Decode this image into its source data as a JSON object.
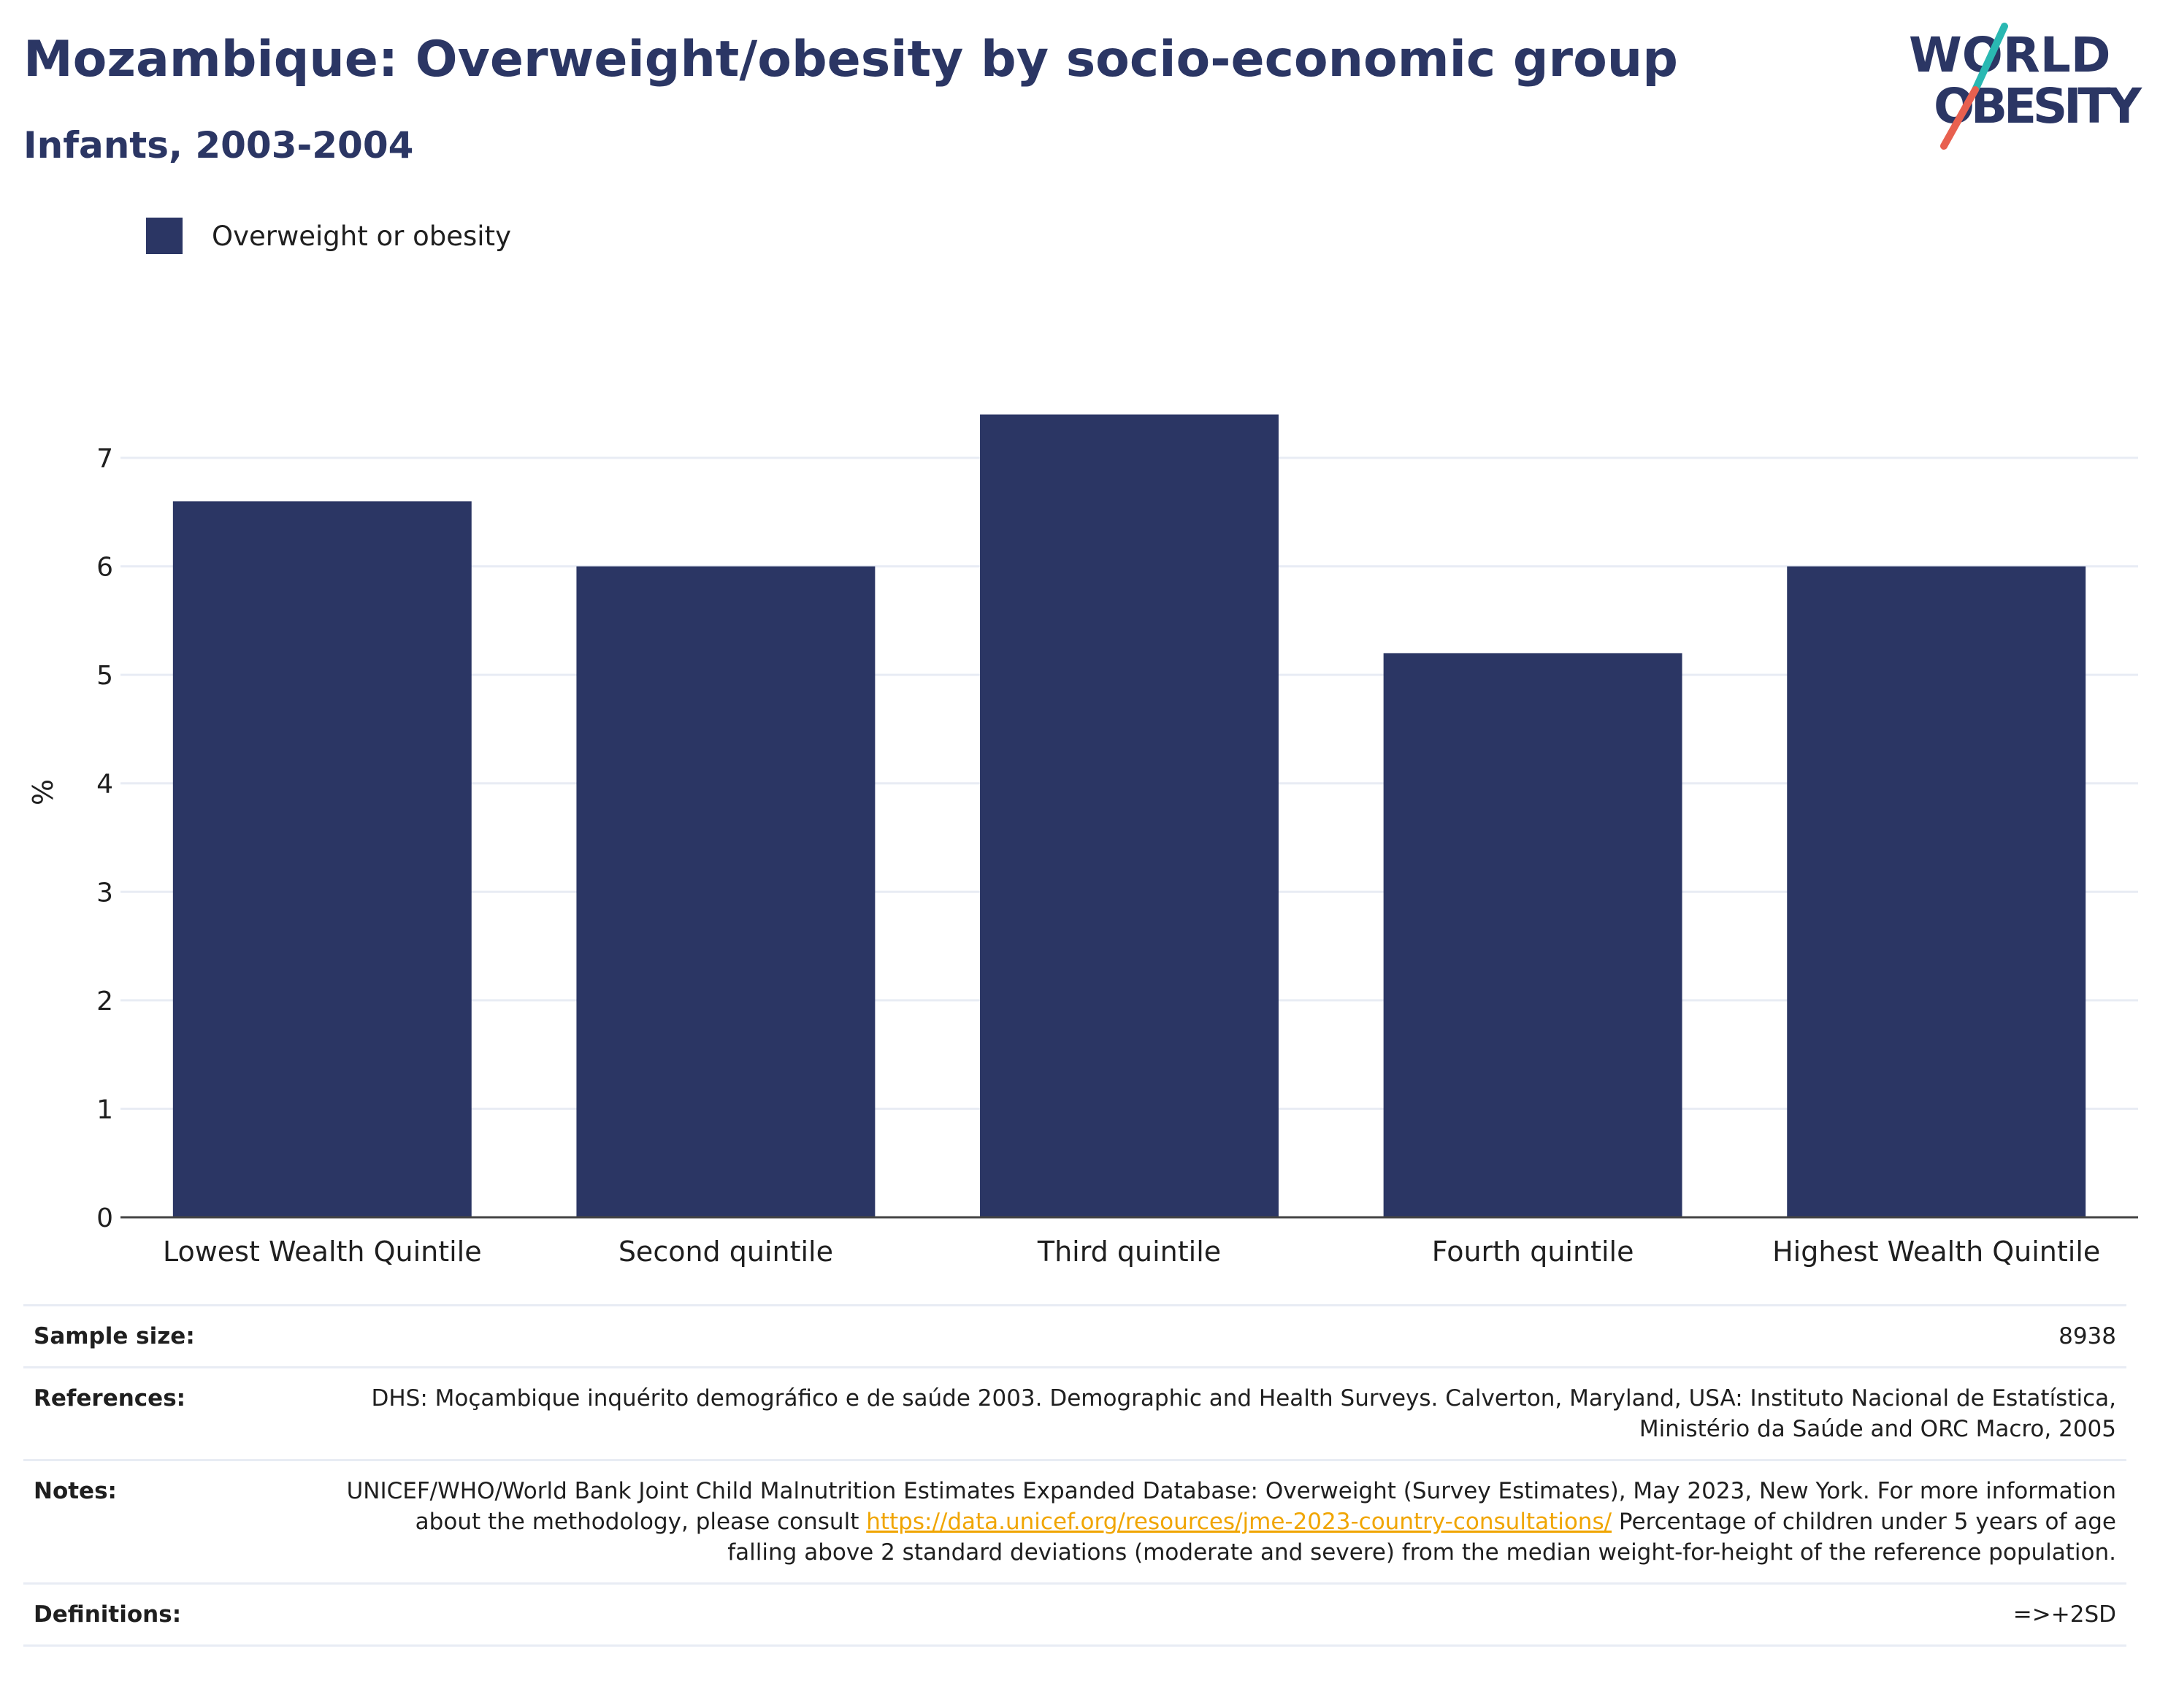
{
  "header": {
    "title": "Mozambique: Overweight/obesity by socio-economic group",
    "subtitle": "Infants, 2003-2004"
  },
  "logo": {
    "line1": "WORLD",
    "line2": "OBESITY",
    "colors": {
      "text": "#2b3664",
      "slash_top": "#2ab8b2",
      "slash_bottom": "#e8604f"
    }
  },
  "colors": {
    "bar": "#2b3664",
    "grid": "#e8ecf4",
    "axis": "#444444",
    "link": "#f0a500"
  },
  "chart_data": {
    "type": "bar",
    "categories": [
      "Lowest Wealth Quintile",
      "Second quintile",
      "Third quintile",
      "Fourth quintile",
      "Highest Wealth Quintile"
    ],
    "series": [
      {
        "name": "Overweight or obesity",
        "values": [
          6.6,
          6.0,
          7.4,
          5.2,
          6.0
        ]
      }
    ],
    "ylabel": "%",
    "ylim": [
      0,
      7.5
    ],
    "yticks": [
      0,
      1,
      2,
      3,
      4,
      5,
      6,
      7
    ],
    "grid": true,
    "legend": "top-left"
  },
  "info": {
    "sample_size": {
      "label": "Sample size:",
      "value": "8938"
    },
    "references": {
      "label": "References:",
      "value": "DHS: Moçambique inquérito demográfico e de saúde 2003. Demographic and Health Surveys. Calverton, Maryland, USA: Instituto Nacional de Estatística, Ministério da Saúde and ORC Macro, 2005"
    },
    "notes": {
      "label": "Notes:",
      "text_before": "UNICEF/WHO/World Bank Joint Child Malnutrition Estimates Expanded Database: Overweight (Survey Estimates), May 2023, New York. For more information about the methodology, please consult ",
      "link": "https://data.unicef.org/resources/jme-2023-country-consultations/",
      "text_after": " Percentage of children under 5 years of age falling above 2 standard deviations (moderate and severe) from the median weight-for-height of the reference population."
    },
    "definitions": {
      "label": "Definitions:",
      "value": "=>+2SD"
    }
  }
}
